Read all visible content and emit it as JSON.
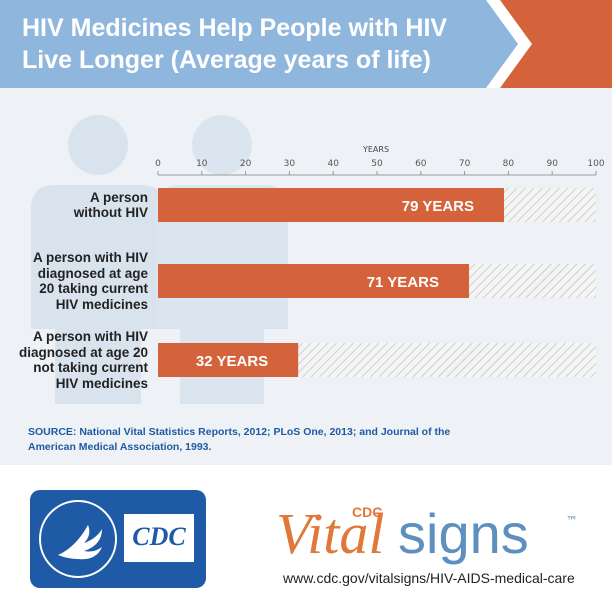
{
  "chart_data": {
    "type": "bar",
    "orientation": "horizontal",
    "title": "HIV Medicines Help People with HIV\nLive Longer (Average years of life)",
    "x_label": "YEARS",
    "categories": [
      "A person\nwithout HIV",
      "A person with HIV\ndiagnosed at age\n20 taking current\nHIV medicines",
      "A person with HIV\ndiagnosed at age 20\nnot taking current\nHIV medicines"
    ],
    "values": [
      79,
      71,
      32
    ],
    "value_labels": [
      "79 YEARS",
      "71 YEARS",
      "32 YEARS"
    ],
    "color": "#d4633b",
    "xlim": [
      0,
      100
    ],
    "xticks": [
      0,
      10,
      20,
      30,
      40,
      50,
      60,
      70,
      80,
      90,
      100
    ],
    "source": "SOURCE: National Vital Statistics Reports, 2012; PLoS One, 2013; and Journal of the\nAmerican Medical Association, 1993."
  },
  "branding": {
    "cdc_logo": "CDC",
    "vitalsigns_cdc": "CDC",
    "vital": "Vital",
    "signs": "signs",
    "trademark": "™",
    "url": "www.cdc.gov/vitalsigns/HIV-AIDS-medical-care"
  }
}
